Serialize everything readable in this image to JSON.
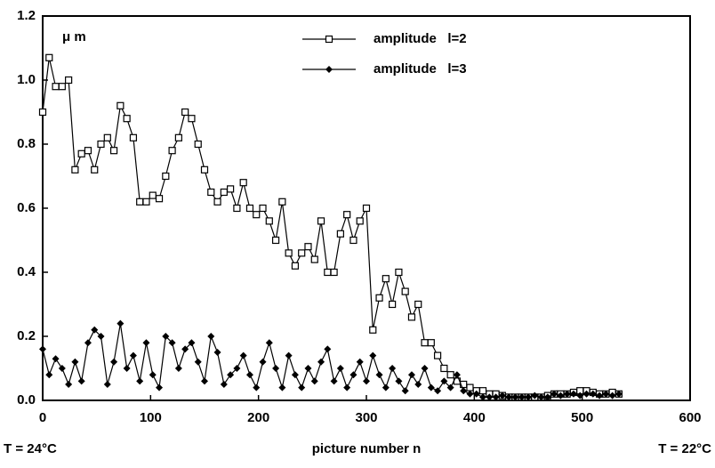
{
  "chart_data": {
    "type": "line",
    "unit_label": "μ m",
    "x_label": "picture number n",
    "left_note": "T = 24°C",
    "right_note": "T = 22°C",
    "xlim": [
      0,
      600
    ],
    "xticks": [
      0,
      100,
      200,
      300,
      400,
      500,
      600
    ],
    "ylim": [
      0,
      1.2
    ],
    "yticks": [
      {
        "value": 0,
        "label": "0.0"
      },
      0.2,
      0.4,
      0.6,
      0.8,
      {
        "value": 1,
        "label": "1.0"
      },
      1.2
    ],
    "x": [
      0,
      6,
      12,
      18,
      24,
      30,
      36,
      42,
      48,
      54,
      60,
      66,
      72,
      78,
      84,
      90,
      96,
      102,
      108,
      114,
      120,
      126,
      132,
      138,
      144,
      150,
      156,
      162,
      168,
      174,
      180,
      186,
      192,
      198,
      204,
      210,
      216,
      222,
      228,
      234,
      240,
      246,
      252,
      258,
      264,
      270,
      276,
      282,
      288,
      294,
      300,
      306,
      312,
      318,
      324,
      330,
      336,
      342,
      348,
      354,
      360,
      366,
      372,
      378,
      384,
      390,
      396,
      402,
      408,
      414,
      420,
      426,
      432,
      438,
      444,
      450,
      456,
      462,
      468,
      474,
      480,
      486,
      492,
      498,
      504,
      510,
      516,
      522,
      528,
      534
    ],
    "series": [
      {
        "name": "amplitude   l=2",
        "color": "#000000",
        "marker": "square",
        "values": [
          0.9,
          1.07,
          0.98,
          0.98,
          1.0,
          0.72,
          0.77,
          0.78,
          0.72,
          0.8,
          0.82,
          0.78,
          0.92,
          0.88,
          0.82,
          0.62,
          0.62,
          0.64,
          0.63,
          0.7,
          0.78,
          0.82,
          0.9,
          0.88,
          0.8,
          0.72,
          0.65,
          0.62,
          0.65,
          0.66,
          0.6,
          0.68,
          0.6,
          0.58,
          0.6,
          0.56,
          0.5,
          0.62,
          0.46,
          0.42,
          0.46,
          0.48,
          0.44,
          0.56,
          0.4,
          0.4,
          0.52,
          0.58,
          0.5,
          0.56,
          0.6,
          0.22,
          0.32,
          0.38,
          0.3,
          0.4,
          0.34,
          0.26,
          0.3,
          0.18,
          0.18,
          0.14,
          0.1,
          0.08,
          0.06,
          0.05,
          0.04,
          0.03,
          0.03,
          0.02,
          0.02,
          0.015,
          0.01,
          0.01,
          0.01,
          0.01,
          0.01,
          0.01,
          0.015,
          0.02,
          0.02,
          0.02,
          0.025,
          0.03,
          0.03,
          0.025,
          0.02,
          0.02,
          0.025,
          0.02
        ]
      },
      {
        "name": "amplitude   l=3",
        "color": "#000000",
        "marker": "diamond",
        "values": [
          0.16,
          0.08,
          0.13,
          0.1,
          0.05,
          0.12,
          0.06,
          0.18,
          0.22,
          0.2,
          0.05,
          0.12,
          0.24,
          0.1,
          0.14,
          0.06,
          0.18,
          0.08,
          0.04,
          0.2,
          0.18,
          0.1,
          0.16,
          0.18,
          0.12,
          0.06,
          0.2,
          0.15,
          0.05,
          0.08,
          0.1,
          0.14,
          0.08,
          0.04,
          0.12,
          0.18,
          0.1,
          0.04,
          0.14,
          0.08,
          0.04,
          0.1,
          0.06,
          0.12,
          0.16,
          0.06,
          0.1,
          0.04,
          0.08,
          0.12,
          0.06,
          0.14,
          0.08,
          0.04,
          0.1,
          0.06,
          0.03,
          0.08,
          0.05,
          0.1,
          0.04,
          0.03,
          0.06,
          0.04,
          0.08,
          0.03,
          0.02,
          0.02,
          0.01,
          0.01,
          0.01,
          0.015,
          0.01,
          0.01,
          0.01,
          0.01,
          0.015,
          0.01,
          0.01,
          0.02,
          0.015,
          0.02,
          0.02,
          0.015,
          0.02,
          0.02,
          0.015,
          0.02,
          0.015,
          0.02
        ]
      }
    ]
  }
}
